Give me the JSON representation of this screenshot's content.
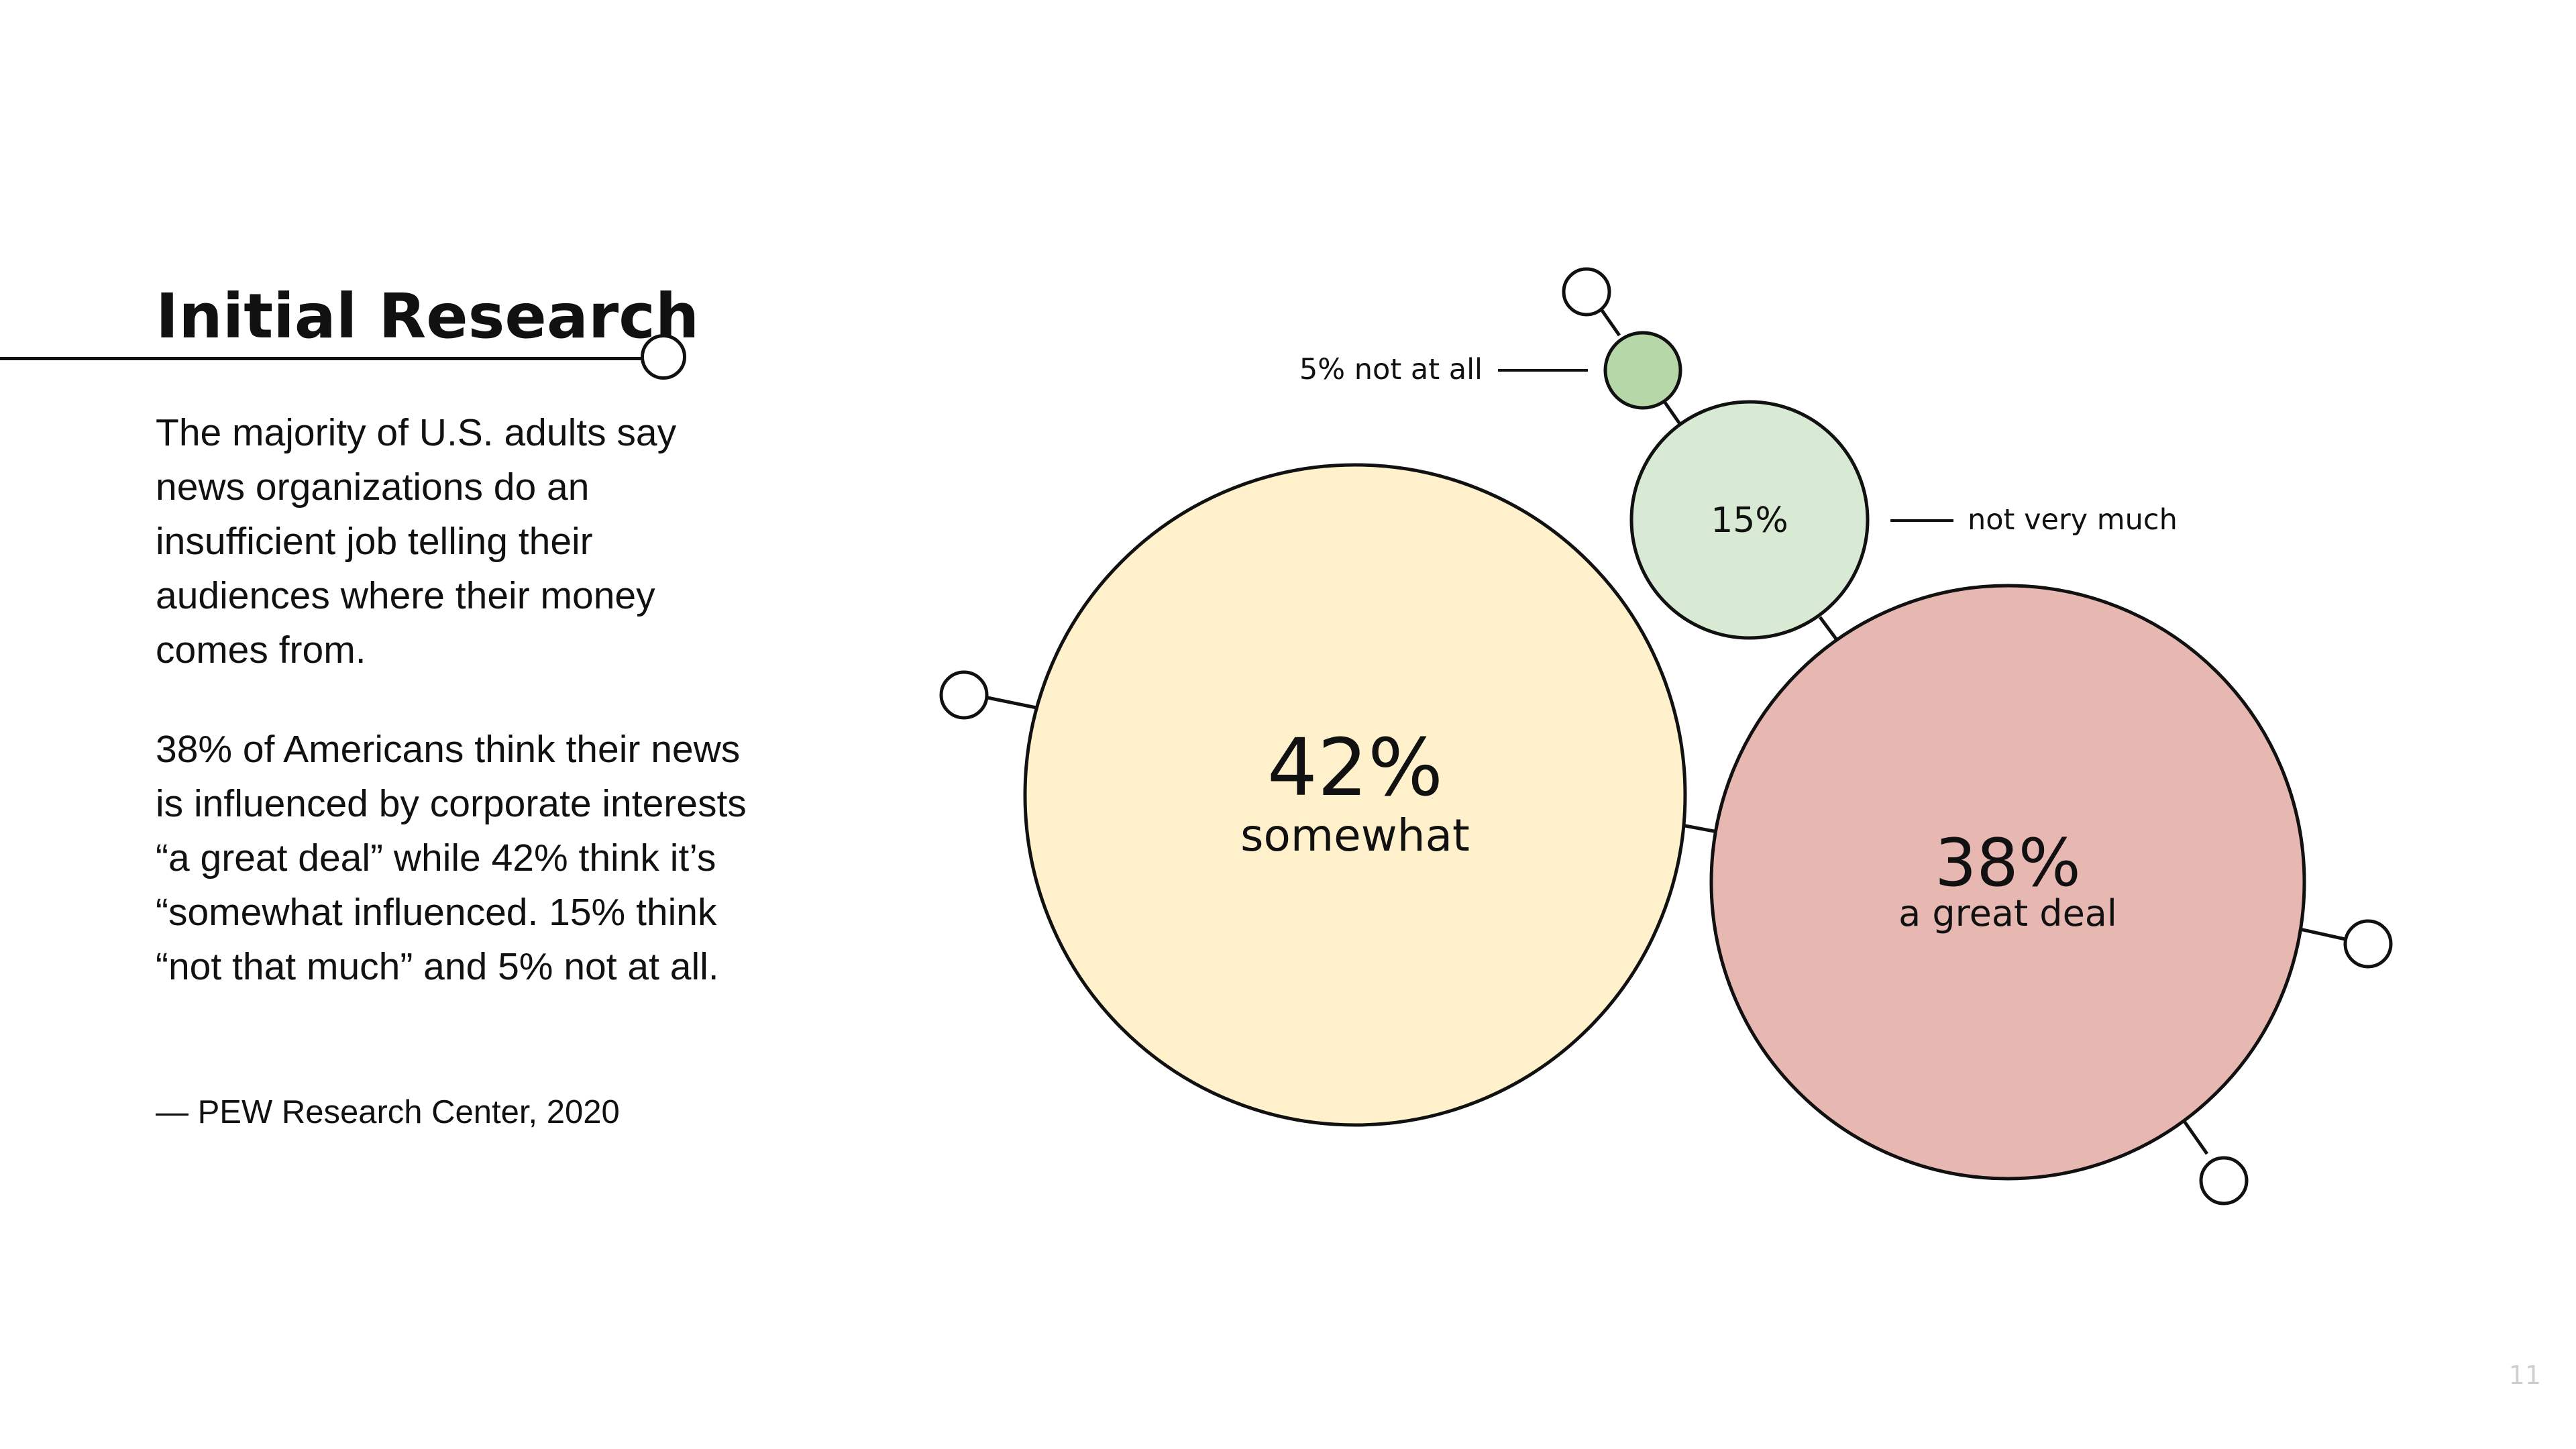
{
  "slide": {
    "title": "Initial Research",
    "paragraph_1": "The majority of U.S. adults say news organizations do an insufficient job telling their audiences where their money comes from.",
    "paragraph_2": "38% of Americans think their news is influenced by corporate interests “a great deal” while 42% think it’s “somewhat influenced. 15% think “not that much” and 5% not at all.",
    "source": "— PEW Research Center, 2020",
    "page_number": "11"
  },
  "chart_data": {
    "type": "bubble",
    "series": [
      {
        "value_label": "42%",
        "category": "somewhat",
        "value": 42,
        "color": "#fff1cc"
      },
      {
        "value_label": "38%",
        "category": "a great deal",
        "value": 38,
        "color": "#e6b8b1"
      },
      {
        "value_label": "15%",
        "category": "",
        "value": 15,
        "color": "#d9ead4"
      },
      {
        "value_label": "",
        "category": "",
        "value": 5,
        "color": "#b6d7a8"
      }
    ],
    "callouts": [
      "5% not at all",
      "not very much"
    ],
    "stroke_color": "#111111"
  }
}
